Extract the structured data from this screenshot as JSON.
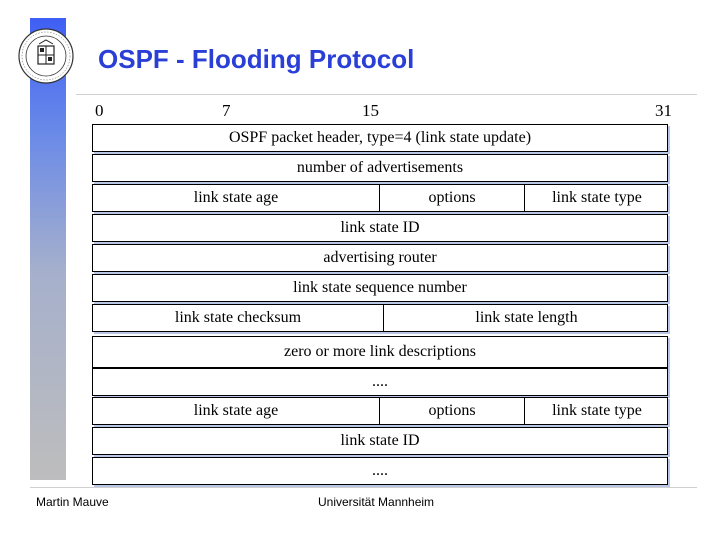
{
  "slide": {
    "title": "OSPF - Flooding Protocol"
  },
  "bit_positions": [
    "0",
    "7",
    "15",
    "31"
  ],
  "rows": [
    {
      "cells": [
        "OSPF packet header, type=4 (link state update)"
      ]
    },
    {
      "cells": [
        "number of advertisements"
      ]
    },
    {
      "cells": [
        "link state age",
        "options",
        "link state type"
      ]
    },
    {
      "cells": [
        "link state ID"
      ]
    },
    {
      "cells": [
        "advertising router"
      ]
    },
    {
      "cells": [
        "link state sequence number"
      ]
    },
    {
      "cells": [
        "link state checksum",
        "link state length"
      ]
    },
    {
      "cells": [
        "zero or more link descriptions"
      ]
    },
    {
      "cells": [
        "...."
      ]
    },
    {
      "cells": [
        "link state age",
        "options",
        "link state type"
      ]
    },
    {
      "cells": [
        "link state ID"
      ]
    },
    {
      "cells": [
        "...."
      ]
    }
  ],
  "footer": {
    "author": "Martin Mauve",
    "institution": "Universität Mannheim"
  },
  "colors": {
    "title": "#2a3fd6",
    "sidebar_top": "#3f5ff5",
    "sidebar_bottom": "#bdbdbd"
  },
  "icons": {
    "logo": "university-seal-icon"
  }
}
